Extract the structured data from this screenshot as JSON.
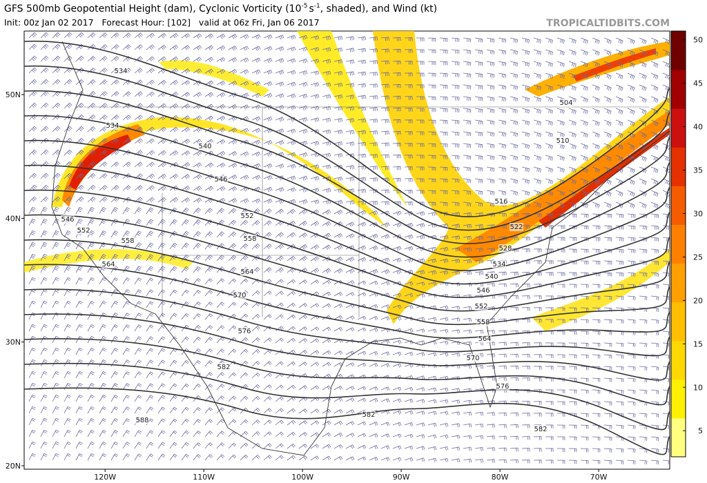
{
  "header": {
    "title_parts": [
      "GFS 500mb Geopotential Height (dam), Cyclonic Vorticity (10",
      "-5",
      "s",
      "-1",
      ", shaded), and Wind (kt)"
    ],
    "subtitle": "Init: 00z Jan 02 2017   Forecast Hour: [102]   valid at 06z Fri, Jan 06 2017",
    "watermark": "TROPICALTIDBITS.COM"
  },
  "map": {
    "lat_lim": [
      19.72,
      55.14
    ],
    "lon_lim": [
      -128.2,
      -62.8
    ],
    "lat_ticks": [
      {
        "value": 50,
        "label": "50N"
      },
      {
        "value": 40,
        "label": "40N"
      },
      {
        "value": 30,
        "label": "30N"
      },
      {
        "value": 20,
        "label": "20N"
      }
    ],
    "lon_ticks": [
      {
        "value": -120,
        "label": "120W"
      },
      {
        "value": -110,
        "label": "110W"
      },
      {
        "value": -100,
        "label": "100W"
      },
      {
        "value": -90,
        "label": "90W"
      },
      {
        "value": -80,
        "label": "80W"
      },
      {
        "value": -70,
        "label": "70W"
      }
    ],
    "contour_labels": [
      534,
      534,
      540,
      546,
      552,
      558,
      564,
      570,
      576,
      582,
      588,
      582,
      582,
      576,
      570,
      564,
      558,
      552,
      546,
      540,
      534,
      528,
      522,
      516,
      510,
      504,
      546,
      552,
      558,
      564
    ]
  },
  "colorbar": {
    "range": [
      2,
      51
    ],
    "ticks": [
      5,
      10,
      15,
      20,
      25,
      30,
      35,
      40,
      45,
      50
    ],
    "colors": [
      "#ffff80",
      "#fff000",
      "#ffd800",
      "#ffbe00",
      "#ffa000",
      "#ff8000",
      "#f55c00",
      "#e53000",
      "#cc1010",
      "#a00000",
      "#700000"
    ]
  }
}
